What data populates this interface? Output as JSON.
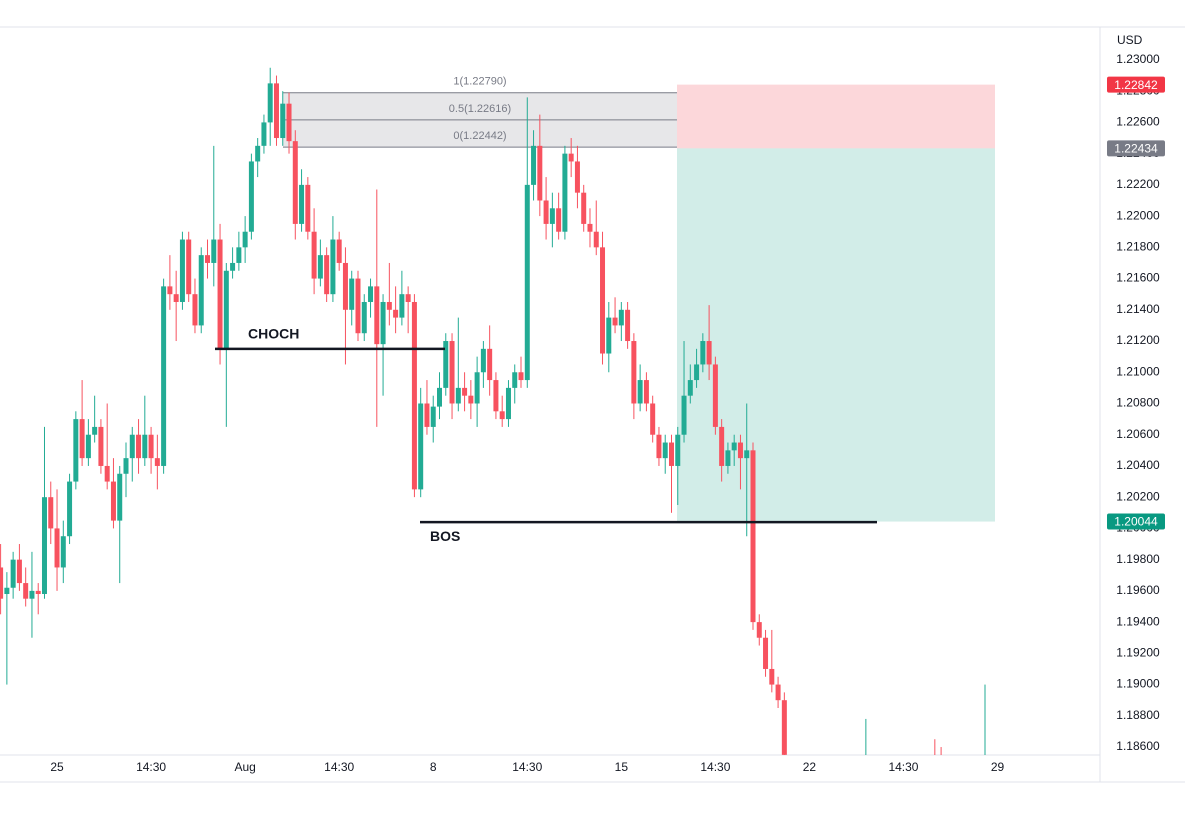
{
  "chart_data": {
    "type": "candlestick",
    "axis_label": "USD",
    "colors": {
      "up": "#22ab94",
      "down": "#f7525f"
    },
    "ylim": [
      1.18549,
      1.23211
    ],
    "yticks": [
      {
        "value": 1.23,
        "label": "1.23000"
      },
      {
        "value": 1.228,
        "label": "1.22800"
      },
      {
        "value": 1.226,
        "label": "1.22600"
      },
      {
        "value": 1.224,
        "label": "1.22400"
      },
      {
        "value": 1.222,
        "label": "1.22200"
      },
      {
        "value": 1.22,
        "label": "1.22000"
      },
      {
        "value": 1.218,
        "label": "1.21800"
      },
      {
        "value": 1.216,
        "label": "1.21600"
      },
      {
        "value": 1.214,
        "label": "1.21400"
      },
      {
        "value": 1.212,
        "label": "1.21200"
      },
      {
        "value": 1.21,
        "label": "1.21000"
      },
      {
        "value": 1.208,
        "label": "1.20800"
      },
      {
        "value": 1.206,
        "label": "1.20600"
      },
      {
        "value": 1.204,
        "label": "1.20400"
      },
      {
        "value": 1.202,
        "label": "1.20200"
      },
      {
        "value": 1.2,
        "label": "1.20000"
      },
      {
        "value": 1.198,
        "label": "1.19800"
      },
      {
        "value": 1.196,
        "label": "1.19600"
      },
      {
        "value": 1.194,
        "label": "1.19400"
      },
      {
        "value": 1.192,
        "label": "1.19200"
      },
      {
        "value": 1.19,
        "label": "1.19000"
      },
      {
        "value": 1.188,
        "label": "1.18800"
      },
      {
        "value": 1.186,
        "label": "1.18600"
      }
    ],
    "categories": [
      null,
      null,
      null,
      null,
      null,
      null,
      null,
      null,
      null,
      "25",
      null,
      null,
      null,
      null,
      null,
      null,
      null,
      null,
      null,
      null,
      null,
      null,
      null,
      null,
      "14:30",
      null,
      null,
      null,
      null,
      null,
      null,
      null,
      null,
      null,
      null,
      null,
      null,
      null,
      null,
      "Aug",
      null,
      null,
      null,
      null,
      null,
      null,
      null,
      null,
      null,
      null,
      null,
      null,
      null,
      null,
      "14:30",
      null,
      null,
      null,
      null,
      null,
      null,
      null,
      null,
      null,
      null,
      null,
      null,
      null,
      null,
      "8",
      null,
      null,
      null,
      null,
      null,
      null,
      null,
      null,
      null,
      null,
      null,
      null,
      null,
      null,
      "14:30",
      null,
      null,
      null,
      null,
      null,
      null,
      null,
      null,
      null,
      null,
      null,
      null,
      null,
      null,
      "15",
      null,
      null,
      null,
      null,
      null,
      null,
      null,
      null,
      null,
      null,
      null,
      null,
      null,
      null,
      "14:30",
      null,
      null,
      null,
      null,
      null,
      null,
      null,
      null,
      null,
      null,
      null,
      null,
      null,
      null,
      "22",
      null,
      null,
      null,
      null,
      null,
      null,
      null,
      null,
      null,
      null,
      null,
      null,
      null,
      null,
      "14:30",
      null,
      null,
      null,
      null,
      null,
      null,
      null,
      null,
      null,
      null,
      null,
      null,
      null,
      null,
      "29"
    ],
    "ohlc": [
      [
        1.1975,
        1.199,
        1.1945,
        1.1955
      ],
      [
        1.1958,
        1.1972,
        1.19,
        1.1962
      ],
      [
        1.1962,
        1.1985,
        1.1955,
        1.198
      ],
      [
        1.198,
        1.199,
        1.196,
        1.1965
      ],
      [
        1.1965,
        1.1975,
        1.195,
        1.1955
      ],
      [
        1.1955,
        1.1985,
        1.193,
        1.196
      ],
      [
        1.196,
        1.1965,
        1.1945,
        1.1958
      ],
      [
        1.1958,
        1.2065,
        1.1955,
        1.202
      ],
      [
        1.202,
        1.203,
        1.199,
        1.2
      ],
      [
        1.2,
        1.2025,
        1.196,
        1.1975
      ],
      [
        1.1975,
        1.2005,
        1.1965,
        1.1995
      ],
      [
        1.1995,
        1.2035,
        1.199,
        1.203
      ],
      [
        1.203,
        1.2075,
        1.2025,
        1.207
      ],
      [
        1.207,
        1.2095,
        1.204,
        1.2045
      ],
      [
        1.2045,
        1.207,
        1.204,
        1.206
      ],
      [
        1.206,
        1.2085,
        1.2055,
        1.2065
      ],
      [
        1.2065,
        1.207,
        1.2035,
        1.204
      ],
      [
        1.204,
        1.208,
        1.2025,
        1.203
      ],
      [
        1.203,
        1.2045,
        1.2,
        1.2005
      ],
      [
        1.2005,
        1.204,
        1.1965,
        1.2035
      ],
      [
        1.2035,
        1.2055,
        1.202,
        1.2045
      ],
      [
        1.2045,
        1.2065,
        1.203,
        1.206
      ],
      [
        1.206,
        1.207,
        1.2035,
        1.2045
      ],
      [
        1.2045,
        1.2085,
        1.204,
        1.206
      ],
      [
        1.206,
        1.2065,
        1.2035,
        1.2045
      ],
      [
        1.2045,
        1.206,
        1.2025,
        1.204
      ],
      [
        1.204,
        1.216,
        1.2035,
        1.2155
      ],
      [
        1.2155,
        1.2175,
        1.214,
        1.215
      ],
      [
        1.215,
        1.2165,
        1.212,
        1.2145
      ],
      [
        1.2145,
        1.219,
        1.214,
        1.2185
      ],
      [
        1.2185,
        1.219,
        1.2145,
        1.215
      ],
      [
        1.215,
        1.216,
        1.2125,
        1.213
      ],
      [
        1.213,
        1.218,
        1.2125,
        1.2175
      ],
      [
        1.2175,
        1.2185,
        1.216,
        1.217
      ],
      [
        1.217,
        1.2245,
        1.2155,
        1.2185
      ],
      [
        1.2185,
        1.2195,
        1.2105,
        1.2115
      ],
      [
        1.2115,
        1.217,
        1.2065,
        1.2165
      ],
      [
        1.2165,
        1.218,
        1.216,
        1.217
      ],
      [
        1.217,
        1.219,
        1.2165,
        1.218
      ],
      [
        1.218,
        1.22,
        1.217,
        1.219
      ],
      [
        1.219,
        1.224,
        1.2185,
        1.2235
      ],
      [
        1.2235,
        1.225,
        1.2225,
        1.2245
      ],
      [
        1.2245,
        1.2265,
        1.224,
        1.226
      ],
      [
        1.226,
        1.2295,
        1.2245,
        1.2285
      ],
      [
        1.2285,
        1.229,
        1.2245,
        1.225
      ],
      [
        1.225,
        1.228,
        1.2245,
        1.2272
      ],
      [
        1.2272,
        1.2279,
        1.224,
        1.2248
      ],
      [
        1.2248,
        1.2255,
        1.2185,
        1.2195
      ],
      [
        1.2195,
        1.223,
        1.219,
        1.222
      ],
      [
        1.222,
        1.2225,
        1.2185,
        1.219
      ],
      [
        1.219,
        1.2205,
        1.215,
        1.216
      ],
      [
        1.216,
        1.2185,
        1.2155,
        1.2175
      ],
      [
        1.2175,
        1.218,
        1.2145,
        1.215
      ],
      [
        1.215,
        1.22,
        1.2145,
        1.2185
      ],
      [
        1.2185,
        1.219,
        1.2165,
        1.217
      ],
      [
        1.217,
        1.218,
        1.2105,
        1.214
      ],
      [
        1.214,
        1.2165,
        1.213,
        1.216
      ],
      [
        1.216,
        1.2165,
        1.212,
        1.2125
      ],
      [
        1.2125,
        1.215,
        1.212,
        1.2145
      ],
      [
        1.2145,
        1.216,
        1.2135,
        1.2155
      ],
      [
        1.2155,
        1.2217,
        1.2065,
        1.2118
      ],
      [
        1.2118,
        1.215,
        1.2085,
        1.2145
      ],
      [
        1.2145,
        1.217,
        1.213,
        1.214
      ],
      [
        1.214,
        1.2155,
        1.2125,
        1.2135
      ],
      [
        1.2135,
        1.2165,
        1.213,
        1.215
      ],
      [
        1.215,
        1.2155,
        1.2125,
        1.2145
      ],
      [
        1.2145,
        1.215,
        1.202,
        1.2025
      ],
      [
        1.2025,
        1.209,
        1.202,
        1.208
      ],
      [
        1.208,
        1.2095,
        1.206,
        1.2065
      ],
      [
        1.2065,
        1.2085,
        1.2055,
        1.2078
      ],
      [
        1.2078,
        1.21,
        1.207,
        1.209
      ],
      [
        1.209,
        1.2125,
        1.2085,
        1.212
      ],
      [
        1.212,
        1.2125,
        1.207,
        1.208
      ],
      [
        1.208,
        1.2135,
        1.2075,
        1.209
      ],
      [
        1.209,
        1.21,
        1.2075,
        1.2085
      ],
      [
        1.2085,
        1.2095,
        1.207,
        1.208
      ],
      [
        1.208,
        1.211,
        1.2065,
        1.21
      ],
      [
        1.21,
        1.212,
        1.209,
        1.2115
      ],
      [
        1.2115,
        1.213,
        1.2085,
        1.2095
      ],
      [
        1.2095,
        1.21,
        1.207,
        1.2075
      ],
      [
        1.2075,
        1.2085,
        1.2065,
        1.207
      ],
      [
        1.207,
        1.2095,
        1.2065,
        1.209
      ],
      [
        1.209,
        1.2105,
        1.208,
        1.21
      ],
      [
        1.21,
        1.211,
        1.209,
        1.2095
      ],
      [
        1.2095,
        1.2276,
        1.209,
        1.222
      ],
      [
        1.222,
        1.2255,
        1.221,
        1.2245
      ],
      [
        1.2245,
        1.2265,
        1.22,
        1.221
      ],
      [
        1.221,
        1.2225,
        1.2185,
        1.2195
      ],
      [
        1.2195,
        1.2215,
        1.218,
        1.2205
      ],
      [
        1.2205,
        1.2215,
        1.2185,
        1.219
      ],
      [
        1.219,
        1.2245,
        1.2185,
        1.224
      ],
      [
        1.224,
        1.225,
        1.2225,
        1.2235
      ],
      [
        1.2235,
        1.2245,
        1.2205,
        1.2215
      ],
      [
        1.2215,
        1.222,
        1.219,
        1.2195
      ],
      [
        1.2195,
        1.2205,
        1.218,
        1.219
      ],
      [
        1.219,
        1.221,
        1.2175,
        1.218
      ],
      [
        1.218,
        1.219,
        1.2105,
        1.2112
      ],
      [
        1.2112,
        1.2145,
        1.21,
        1.2135
      ],
      [
        1.2135,
        1.2148,
        1.2125,
        1.213
      ],
      [
        1.213,
        1.2145,
        1.212,
        1.214
      ],
      [
        1.214,
        1.2145,
        1.2115,
        1.212
      ],
      [
        1.212,
        1.2125,
        1.207,
        1.208
      ],
      [
        1.208,
        1.2105,
        1.2075,
        1.2095
      ],
      [
        1.2095,
        1.21,
        1.2075,
        1.208
      ],
      [
        1.208,
        1.2085,
        1.2055,
        1.206
      ],
      [
        1.206,
        1.2065,
        1.204,
        1.2045
      ],
      [
        1.2045,
        1.206,
        1.2035,
        1.2055
      ],
      [
        1.2055,
        1.206,
        1.201,
        1.204
      ],
      [
        1.204,
        1.2065,
        1.2015,
        1.206
      ],
      [
        1.206,
        1.212,
        1.2055,
        1.2085
      ],
      [
        1.2085,
        1.2105,
        1.208,
        1.2095
      ],
      [
        1.2095,
        1.2115,
        1.209,
        1.2105
      ],
      [
        1.2105,
        1.2125,
        1.21,
        1.212
      ],
      [
        1.212,
        1.2143,
        1.2095,
        1.2105
      ],
      [
        1.2105,
        1.211,
        1.206,
        1.2065
      ],
      [
        1.2065,
        1.207,
        1.203,
        1.204
      ],
      [
        1.204,
        1.2055,
        1.2035,
        1.205
      ],
      [
        1.205,
        1.206,
        1.204,
        1.2055
      ],
      [
        1.2055,
        1.206,
        1.2025,
        1.2045
      ],
      [
        1.2045,
        1.208,
        1.1995,
        1.205
      ],
      [
        1.205,
        1.2055,
        1.1935,
        1.194
      ],
      [
        1.194,
        1.1945,
        1.1925,
        1.193
      ],
      [
        1.193,
        1.1935,
        1.1905,
        1.191
      ],
      [
        1.191,
        1.1935,
        1.1895,
        1.19
      ],
      [
        1.19,
        1.1905,
        1.1885,
        1.189
      ],
      [
        1.189,
        1.1895,
        1.185,
        1.1855
      ],
      null,
      null,
      null,
      null,
      null,
      null,
      null,
      null,
      null,
      null,
      null,
      null,
      [
        1.184,
        1.1878,
        1.183,
        1.1845
      ],
      null,
      null,
      null,
      null,
      null,
      null,
      null,
      null,
      null,
      null,
      [
        1.1845,
        1.1865,
        1.1835,
        1.184
      ],
      [
        1.184,
        1.186,
        1.183,
        1.1835
      ],
      null,
      null,
      null,
      null,
      null,
      null,
      [
        1.184,
        1.19,
        1.183,
        1.1845
      ],
      null,
      null
    ],
    "fib": {
      "levels": [
        1.2279,
        1.22616,
        1.22442
      ],
      "labels": [
        "1(1.22790)",
        "0.5(1.22616)",
        "0(1.22442)"
      ]
    },
    "position": {
      "stop": 1.22842,
      "entry": 1.22434,
      "target": 1.20044
    },
    "annotations": [
      {
        "text": "CHOCH",
        "level": 1.2115
      },
      {
        "text": "BOS",
        "level": 1.2004
      }
    ]
  }
}
